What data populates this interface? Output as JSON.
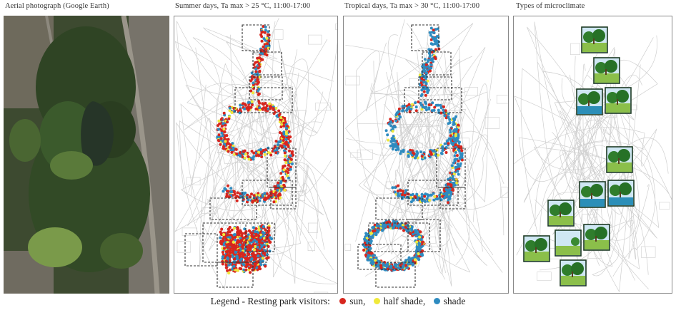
{
  "panels": {
    "aerial": {
      "title": "Aerial photograph (Google Earth)"
    },
    "summer": {
      "title": "Summer days, Ta max > 25 °C, 11:00-17:00"
    },
    "tropical": {
      "title": "Tropical days, Ta max > 30 °C, 11:00-17:00"
    },
    "microclimate": {
      "title": "Types of microclimate"
    }
  },
  "legend": {
    "title": "Legend - Resting park visitors:",
    "items": [
      {
        "label": "sun,",
        "color": "#d7261e"
      },
      {
        "label": "half shade,",
        "color": "#f0e93a"
      },
      {
        "label": "shade",
        "color": "#2e8bc0"
      }
    ]
  },
  "colors": {
    "sun": "#d7261e",
    "half_shade": "#f0e93a",
    "shade": "#2e8bc0",
    "box": "#333333",
    "map_line": "#cfcfcf"
  }
}
